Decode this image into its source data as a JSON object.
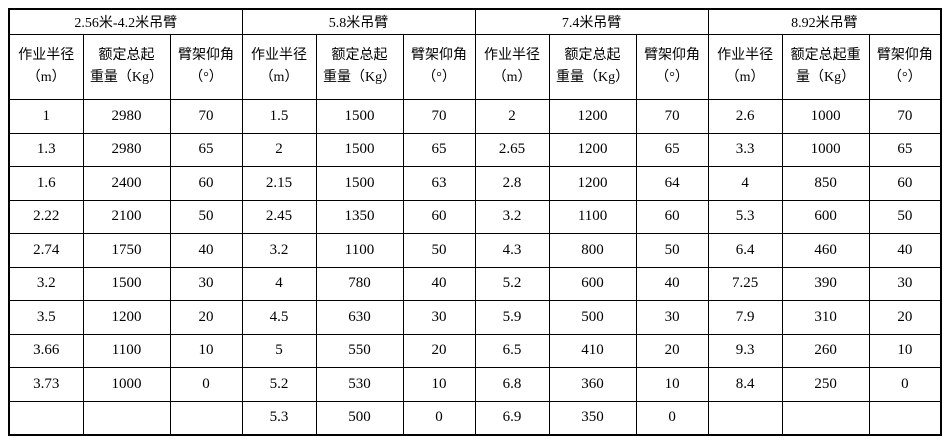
{
  "table": {
    "border_color": "#000000",
    "text_color": "#000000",
    "background_color": "#ffffff",
    "groups": [
      {
        "title": "2.56米-4.2米吊臂",
        "headers": [
          {
            "line1": "作业半径",
            "line2": "（m）"
          },
          {
            "line1": "额定总起",
            "line2": "重量（Kg）"
          },
          {
            "line1": "臂架仰角",
            "line2": "（°）"
          }
        ],
        "rows": [
          [
            "1",
            "2980",
            "70"
          ],
          [
            "1.3",
            "2980",
            "65"
          ],
          [
            "1.6",
            "2400",
            "60"
          ],
          [
            "2.22",
            "2100",
            "50"
          ],
          [
            "2.74",
            "1750",
            "40"
          ],
          [
            "3.2",
            "1500",
            "30"
          ],
          [
            "3.5",
            "1200",
            "20"
          ],
          [
            "3.66",
            "1100",
            "10"
          ],
          [
            "3.73",
            "1000",
            "0"
          ],
          [
            "",
            "",
            ""
          ]
        ]
      },
      {
        "title": "5.8米吊臂",
        "headers": [
          {
            "line1": "作业半径",
            "line2": "（m）"
          },
          {
            "line1": "额定总起",
            "line2": "重量（Kg）"
          },
          {
            "line1": "臂架仰角",
            "line2": "（°）"
          }
        ],
        "rows": [
          [
            "1.5",
            "1500",
            "70"
          ],
          [
            "2",
            "1500",
            "65"
          ],
          [
            "2.15",
            "1500",
            "63"
          ],
          [
            "2.45",
            "1350",
            "60"
          ],
          [
            "3.2",
            "1100",
            "50"
          ],
          [
            "4",
            "780",
            "40"
          ],
          [
            "4.5",
            "630",
            "30"
          ],
          [
            "5",
            "550",
            "20"
          ],
          [
            "5.2",
            "530",
            "10"
          ],
          [
            "5.3",
            "500",
            "0"
          ]
        ]
      },
      {
        "title": "7.4米吊臂",
        "headers": [
          {
            "line1": "作业半径",
            "line2": "（m）"
          },
          {
            "line1": "额定总起",
            "line2": "重量（Kg）"
          },
          {
            "line1": "臂架仰角",
            "line2": "（°）"
          }
        ],
        "rows": [
          [
            "2",
            "1200",
            "70"
          ],
          [
            "2.65",
            "1200",
            "65"
          ],
          [
            "2.8",
            "1200",
            "64"
          ],
          [
            "3.2",
            "1100",
            "60"
          ],
          [
            "4.3",
            "800",
            "50"
          ],
          [
            "5.2",
            "600",
            "40"
          ],
          [
            "5.9",
            "500",
            "30"
          ],
          [
            "6.5",
            "410",
            "20"
          ],
          [
            "6.8",
            "360",
            "10"
          ],
          [
            "6.9",
            "350",
            "0"
          ]
        ]
      },
      {
        "title": "8.92米吊臂",
        "headers": [
          {
            "line1": "作业半径",
            "line2": "（m）"
          },
          {
            "line1": "额定总起重",
            "line2": "量（Kg）"
          },
          {
            "line1": "臂架仰角",
            "line2": "（°）"
          }
        ],
        "rows": [
          [
            "2.6",
            "1000",
            "70"
          ],
          [
            "3.3",
            "1000",
            "65"
          ],
          [
            "4",
            "850",
            "60"
          ],
          [
            "5.3",
            "600",
            "50"
          ],
          [
            "6.4",
            "460",
            "40"
          ],
          [
            "7.25",
            "390",
            "30"
          ],
          [
            "7.9",
            "310",
            "20"
          ],
          [
            "9.3",
            "260",
            "10"
          ],
          [
            "8.4",
            "250",
            "0"
          ],
          [
            "",
            "",
            ""
          ]
        ]
      }
    ]
  }
}
